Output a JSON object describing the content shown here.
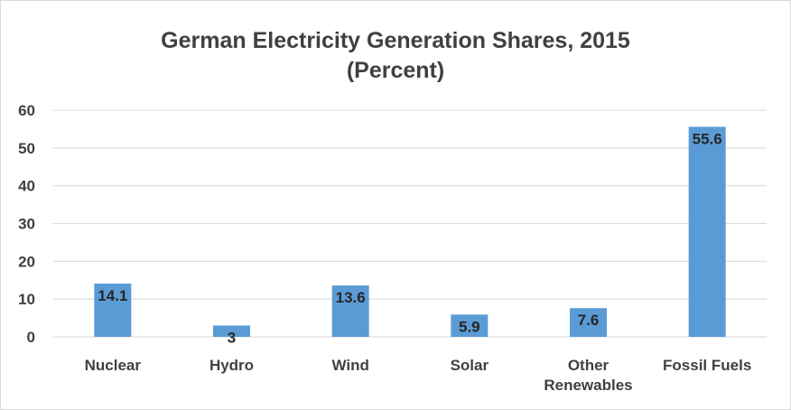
{
  "chart_data": {
    "type": "bar",
    "title_lines": [
      "German Electricity Generation Shares, 2015",
      "(Percent)"
    ],
    "categories": [
      [
        "Nuclear"
      ],
      [
        "Hydro"
      ],
      [
        "Wind"
      ],
      [
        "Solar"
      ],
      [
        "Other",
        "Renewables"
      ],
      [
        "Fossil Fuels"
      ]
    ],
    "values": [
      14.1,
      3,
      13.6,
      5.9,
      7.6,
      55.6
    ],
    "data_labels": [
      "14.1",
      "3",
      "13.6",
      "5.9",
      "7.6",
      "55.6"
    ],
    "ylim": [
      0,
      60
    ],
    "yticks": [
      0,
      10,
      20,
      30,
      40,
      50,
      60
    ],
    "grid": true,
    "bar_color": "#5b9bd5",
    "xlabel": "",
    "ylabel": ""
  }
}
